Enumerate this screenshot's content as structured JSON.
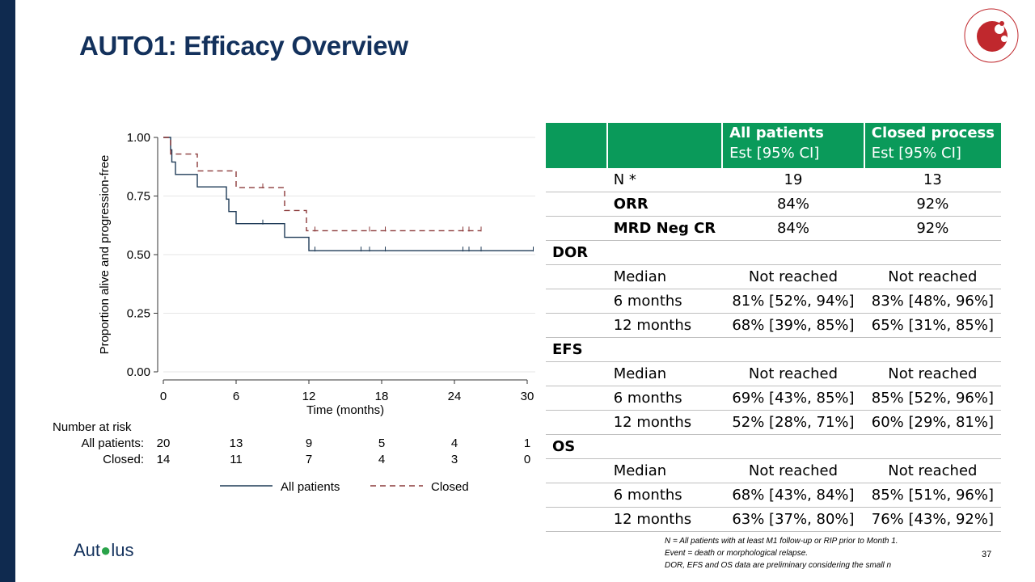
{
  "slide": {
    "title": "AUTO1: Efficacy Overview",
    "page_number": "37",
    "brand": {
      "pre": "Aut",
      "post": "lus"
    },
    "accent_color": "#0a9a5a",
    "navy_color": "#13315c",
    "footnotes": [
      "N = All patients with at least M1 follow-up or RIP prior to Month 1.",
      "Event = death or morphological relapse.",
      "DOR, EFS and OS data are preliminary considering the small n"
    ]
  },
  "table": {
    "header": {
      "col1": "All patients",
      "col1_sub": "Est [95% CI]",
      "col2": "Closed process",
      "col2_sub": "Est [95% CI]"
    },
    "rows": {
      "n": {
        "label": "N *",
        "a": "19",
        "b": "13"
      },
      "orr": {
        "label": "ORR",
        "a": "84%",
        "b": "92%"
      },
      "mrd": {
        "label": "MRD Neg CR",
        "a": "84%",
        "b": "92%"
      },
      "dor": {
        "section": "DOR",
        "median": {
          "label": "Median",
          "a": "Not reached",
          "b": "Not reached"
        },
        "m6": {
          "label": "6 months",
          "a": "81% [52%, 94%]",
          "b": "83% [48%, 96%]"
        },
        "m12": {
          "label": "12 months",
          "a": "68% [39%, 85%]",
          "b": "65% [31%, 85%]"
        }
      },
      "efs": {
        "section": "EFS",
        "median": {
          "label": "Median",
          "a": "Not reached",
          "b": "Not reached"
        },
        "m6": {
          "label": "6 months",
          "a": "69% [43%, 85%]",
          "b": "85% [52%, 96%]"
        },
        "m12": {
          "label": "12 months",
          "a": "52% [28%, 71%]",
          "b": "60% [29%, 81%]"
        }
      },
      "os": {
        "section": "OS",
        "median": {
          "label": "Median",
          "a": "Not reached",
          "b": "Not reached"
        },
        "m6": {
          "label": "6 months",
          "a": "68% [43%, 84%]",
          "b": "85% [51%, 96%]"
        },
        "m12": {
          "label": "12 months",
          "a": "63% [37%, 80%]",
          "b": "76% [43%, 92%]"
        }
      }
    }
  },
  "chart_data": {
    "type": "line",
    "subtype": "kaplan-meier step",
    "xlabel": "Time (months)",
    "ylabel": "Proportion alive and progression-free",
    "xlim": [
      0,
      30
    ],
    "ylim": [
      0,
      1
    ],
    "xticks": [
      "0",
      "6",
      "12",
      "18",
      "24",
      "30"
    ],
    "yticks": [
      "0.00",
      "0.25",
      "0.50",
      "0.75",
      "1.00"
    ],
    "xtick_values": [
      0,
      6,
      12,
      18,
      24,
      30
    ],
    "ytick_values": [
      0,
      0.25,
      0.5,
      0.75,
      1
    ],
    "grid": true,
    "legend_position": "bottom",
    "series": [
      {
        "name": "All patients",
        "color": "#1f3b57",
        "dash": false,
        "steps": [
          [
            0,
            1.0
          ],
          [
            0.6,
            0.947
          ],
          [
            0.7,
            0.895
          ],
          [
            1.0,
            0.842
          ],
          [
            2.8,
            0.789
          ],
          [
            5.2,
            0.737
          ],
          [
            5.4,
            0.684
          ],
          [
            6.0,
            0.632
          ],
          [
            10.0,
            0.574
          ],
          [
            12.0,
            0.517
          ],
          [
            30.5,
            0.517
          ]
        ],
        "censored": [
          [
            5.2,
            0.737
          ],
          [
            8.2,
            0.632
          ],
          [
            12.5,
            0.517
          ],
          [
            16.3,
            0.517
          ],
          [
            17.0,
            0.517
          ],
          [
            18.3,
            0.517
          ],
          [
            24.7,
            0.517
          ],
          [
            25.2,
            0.517
          ],
          [
            26.2,
            0.517
          ],
          [
            30.5,
            0.517
          ]
        ]
      },
      {
        "name": "Closed",
        "color": "#8b3a3a",
        "dash": true,
        "steps": [
          [
            0,
            1.0
          ],
          [
            0.6,
            0.929
          ],
          [
            2.8,
            0.857
          ],
          [
            6.0,
            0.786
          ],
          [
            10.0,
            0.688
          ],
          [
            11.8,
            0.602
          ],
          [
            26.2,
            0.602
          ]
        ],
        "censored": [
          [
            8.2,
            0.786
          ],
          [
            12.5,
            0.602
          ],
          [
            17.0,
            0.602
          ],
          [
            18.3,
            0.602
          ],
          [
            24.7,
            0.602
          ],
          [
            25.2,
            0.602
          ],
          [
            26.2,
            0.602
          ]
        ]
      }
    ],
    "risk_table": {
      "title": "Number at risk",
      "rows": [
        {
          "label": "All patients:",
          "values": [
            "20",
            "13",
            "9",
            "5",
            "4",
            "1"
          ]
        },
        {
          "label": "Closed:",
          "values": [
            "14",
            "11",
            "7",
            "4",
            "3",
            "0"
          ]
        }
      ]
    }
  }
}
